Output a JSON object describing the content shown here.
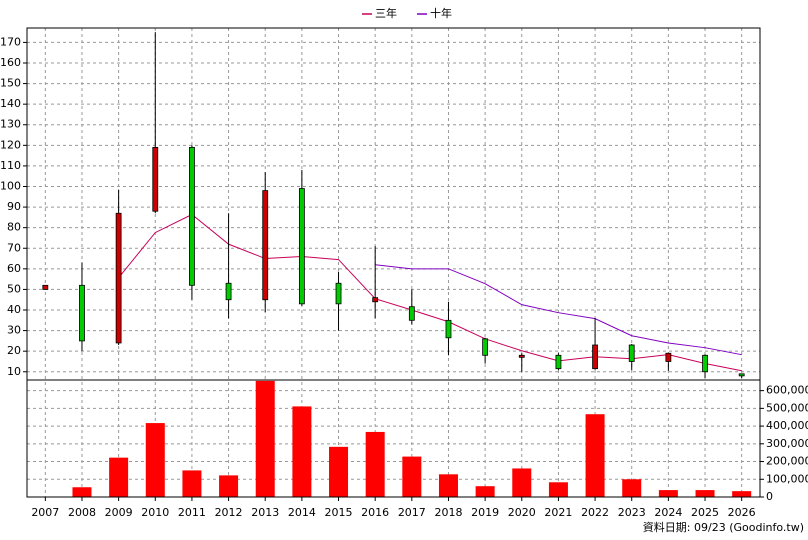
{
  "chart_data": [
    {
      "type": "candlestick",
      "categories": [
        "2007",
        "2008",
        "2009",
        "2010",
        "2011",
        "2012",
        "2013",
        "2014",
        "2015",
        "2016",
        "2017",
        "2018",
        "2019",
        "2020",
        "2021",
        "2022",
        "2023",
        "2024",
        "2025",
        "2026"
      ],
      "open": [
        50,
        52,
        24,
        88,
        119,
        53,
        45,
        99,
        53,
        44,
        41.6,
        35,
        26,
        17,
        18,
        11.5,
        23,
        15,
        18,
        9
      ],
      "high": [
        52,
        63,
        98.5,
        175,
        120,
        87,
        107,
        108,
        58.6,
        71,
        50,
        44,
        26.5,
        19,
        19,
        36,
        23.5,
        19.2,
        18.5,
        9
      ],
      "low": [
        50,
        20,
        23,
        87,
        45,
        36,
        39,
        42,
        30,
        36,
        33,
        18,
        14,
        10,
        10.8,
        11,
        10.8,
        10.5,
        7,
        7
      ],
      "close": [
        52,
        25,
        87,
        119,
        52,
        45,
        98,
        43,
        43,
        46,
        35,
        26.5,
        18,
        18,
        11.5,
        23,
        15,
        19,
        10,
        8
      ],
      "up_color": "#cc0000",
      "down_color": "#00cc00",
      "series": [
        {
          "name": "三年",
          "color": "#c8005a",
          "values": [
            null,
            null,
            55.7,
            77.6,
            86.4,
            72,
            65,
            66,
            64.5,
            45.5,
            40,
            34.3,
            26,
            20.2,
            15.3,
            17.3,
            16.3,
            18.3,
            14,
            10.5
          ]
        },
        {
          "name": "十年",
          "color": "#8000c0",
          "values": [
            null,
            null,
            null,
            null,
            null,
            null,
            null,
            null,
            null,
            62,
            60,
            60,
            52.8,
            42.6,
            38.7,
            35.8,
            27.5,
            24,
            21.7,
            18.3
          ]
        }
      ],
      "ylim": [
        6,
        177
      ],
      "yticks": [
        10,
        20,
        30,
        40,
        50,
        60,
        70,
        80,
        90,
        100,
        110,
        120,
        130,
        140,
        150,
        160,
        170
      ],
      "grid": true,
      "legend": "top"
    },
    {
      "type": "bar",
      "color": "#ff0000",
      "values": [
        2000,
        55000,
        222000,
        417000,
        150000,
        122000,
        655000,
        511000,
        283000,
        367000,
        228000,
        128000,
        61000,
        161000,
        83000,
        467000,
        100000,
        39000,
        39000,
        33000
      ],
      "ylim": [
        0,
        660000
      ],
      "yticks": [
        0,
        {
          "value": 100000,
          "label": "100,000"
        },
        {
          "value": 200000,
          "label": "200,000"
        },
        {
          "value": 300000,
          "label": "300,000"
        },
        {
          "value": 400000,
          "label": "400,000"
        },
        {
          "value": 500000,
          "label": "500,000"
        },
        {
          "value": 600000,
          "label": "600,000"
        }
      ],
      "grid": true
    }
  ],
  "footer": "資料日期: 09/23 (Goodinfo.tw)"
}
